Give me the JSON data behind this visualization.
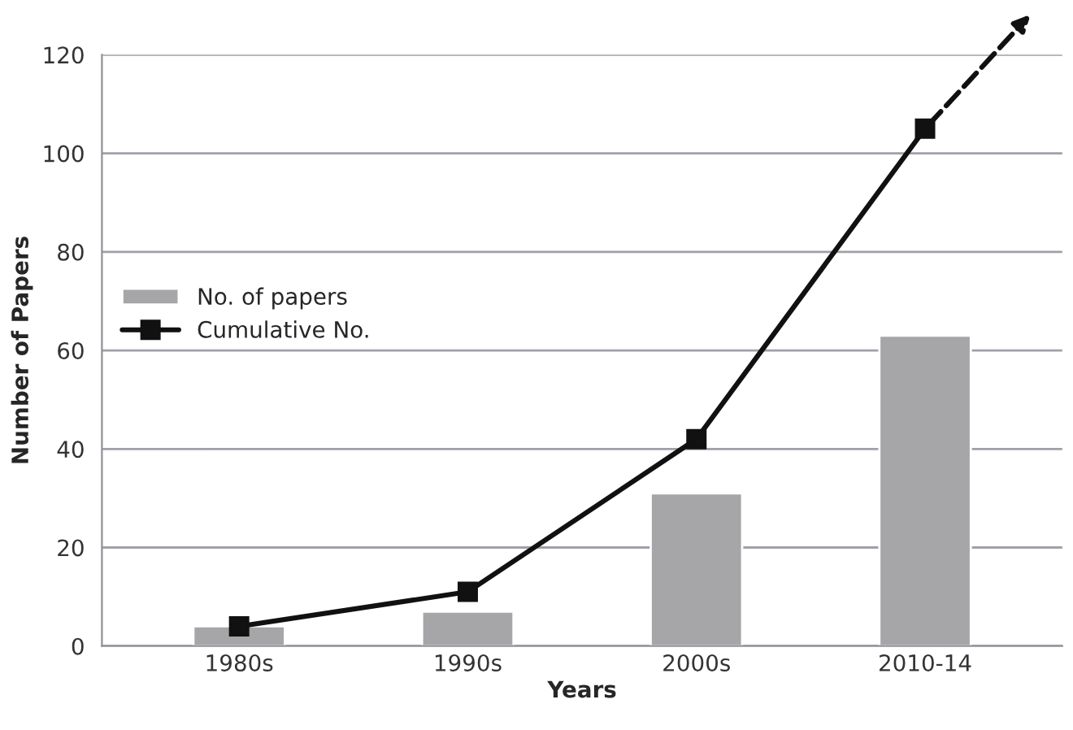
{
  "chart_data": {
    "type": "bar",
    "xlabel": "Years",
    "ylabel": "Number of Papers",
    "categories": [
      "1980s",
      "1990s",
      "2000s",
      "2010-14"
    ],
    "series": [
      {
        "name": "No. of papers",
        "color": "#a6a6a8",
        "values": [
          4,
          7,
          31,
          63
        ]
      },
      {
        "name": "Cumulative No.",
        "type": "line",
        "color": "#111111",
        "values": [
          4,
          11,
          42,
          105
        ],
        "marker": "square",
        "line_style": "solid"
      }
    ],
    "ylim": [
      0,
      120
    ],
    "yticks": [
      0,
      20,
      40,
      60,
      80,
      100,
      120
    ],
    "grid": "y",
    "legend": "left"
  }
}
